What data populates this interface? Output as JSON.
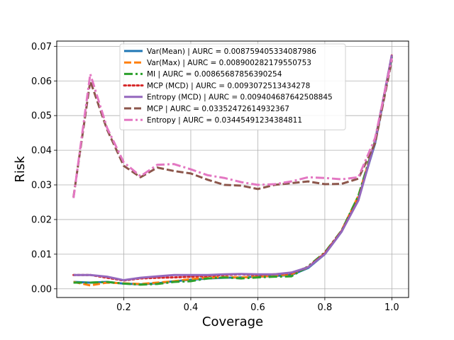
{
  "chart_data": {
    "type": "line",
    "xlabel": "Coverage",
    "ylabel": "Risk",
    "xlim": [
      0.0,
      1.05
    ],
    "ylim": [
      -0.0025,
      0.0715
    ],
    "xticks": [
      0.2,
      0.4,
      0.6,
      0.8,
      1.0
    ],
    "xtick_labels": [
      "0.2",
      "0.4",
      "0.6",
      "0.8",
      "1.0"
    ],
    "yticks": [
      0.0,
      0.01,
      0.02,
      0.03,
      0.04,
      0.05,
      0.06,
      0.07
    ],
    "ytick_labels": [
      "0.00",
      "0.01",
      "0.02",
      "0.03",
      "0.04",
      "0.05",
      "0.06",
      "0.07"
    ],
    "grid": true,
    "legend_position": "top-center",
    "x": [
      0.05,
      0.1,
      0.15,
      0.2,
      0.25,
      0.3,
      0.35,
      0.4,
      0.45,
      0.5,
      0.55,
      0.6,
      0.65,
      0.7,
      0.75,
      0.8,
      0.85,
      0.9,
      0.95,
      1.0
    ],
    "series": [
      {
        "name": "Var(Mean) | AURC = 0.008759405334087986",
        "color": "#1f77b4",
        "dash": "solid",
        "values": [
          0.002,
          0.0018,
          0.002,
          0.0015,
          0.0013,
          0.0016,
          0.0022,
          0.0026,
          0.003,
          0.0032,
          0.0033,
          0.0035,
          0.0037,
          0.004,
          0.006,
          0.01,
          0.0165,
          0.026,
          0.042,
          0.067
        ]
      },
      {
        "name": "Var(Max) | AURC = 0.008900282179550753",
        "color": "#ff7f0e",
        "dash": "dashed",
        "values": [
          0.002,
          0.001,
          0.0018,
          0.0016,
          0.0014,
          0.0018,
          0.0022,
          0.0028,
          0.0032,
          0.0034,
          0.0033,
          0.0035,
          0.0038,
          0.0042,
          0.0062,
          0.0102,
          0.0168,
          0.0268,
          0.0425,
          0.0672
        ]
      },
      {
        "name": "MI | AURC = 0.00865687856390254",
        "color": "#2ca02c",
        "dash": "dashdot",
        "values": [
          0.0018,
          0.0018,
          0.002,
          0.0015,
          0.0012,
          0.0014,
          0.002,
          0.0022,
          0.003,
          0.0033,
          0.003,
          0.0033,
          0.0035,
          0.0036,
          0.0065,
          0.0105,
          0.0168,
          0.0268,
          0.0428,
          0.067
        ]
      },
      {
        "name": "MCP (MCD) | AURC = 0.0093072513434278",
        "color": "#d62728",
        "dash": "dotted",
        "values": [
          0.004,
          0.004,
          0.0032,
          0.0024,
          0.003,
          0.0032,
          0.0033,
          0.0035,
          0.0037,
          0.004,
          0.0042,
          0.004,
          0.0042,
          0.0045,
          0.0063,
          0.0103,
          0.0167,
          0.0258,
          0.0425,
          0.0675
        ]
      },
      {
        "name": "Entropy (MCD) | AURC = 0.009404687642508845",
        "color": "#9467bd",
        "dash": "solid",
        "values": [
          0.004,
          0.004,
          0.0035,
          0.0025,
          0.0032,
          0.0036,
          0.004,
          0.004,
          0.004,
          0.0042,
          0.0043,
          0.0042,
          0.0042,
          0.0047,
          0.0062,
          0.01,
          0.0165,
          0.0255,
          0.0425,
          0.0675
        ]
      },
      {
        "name": "MCP | AURC = 0.03352472614932367",
        "color": "#8c564b",
        "dash": "dashed",
        "values": [
          0.0265,
          0.06,
          0.046,
          0.0355,
          0.0322,
          0.035,
          0.034,
          0.0333,
          0.0315,
          0.03,
          0.0298,
          0.0288,
          0.03,
          0.0305,
          0.031,
          0.0302,
          0.0303,
          0.0318,
          0.042,
          0.066
        ]
      },
      {
        "name": "Entropy | AURC = 0.03445491234384811",
        "color": "#e377c2",
        "dash": "dashdot",
        "values": [
          0.0262,
          0.062,
          0.0465,
          0.0365,
          0.0325,
          0.0358,
          0.036,
          0.0345,
          0.0328,
          0.032,
          0.0308,
          0.03,
          0.0302,
          0.031,
          0.0322,
          0.032,
          0.0316,
          0.0322,
          0.0435,
          0.0665
        ]
      }
    ]
  }
}
